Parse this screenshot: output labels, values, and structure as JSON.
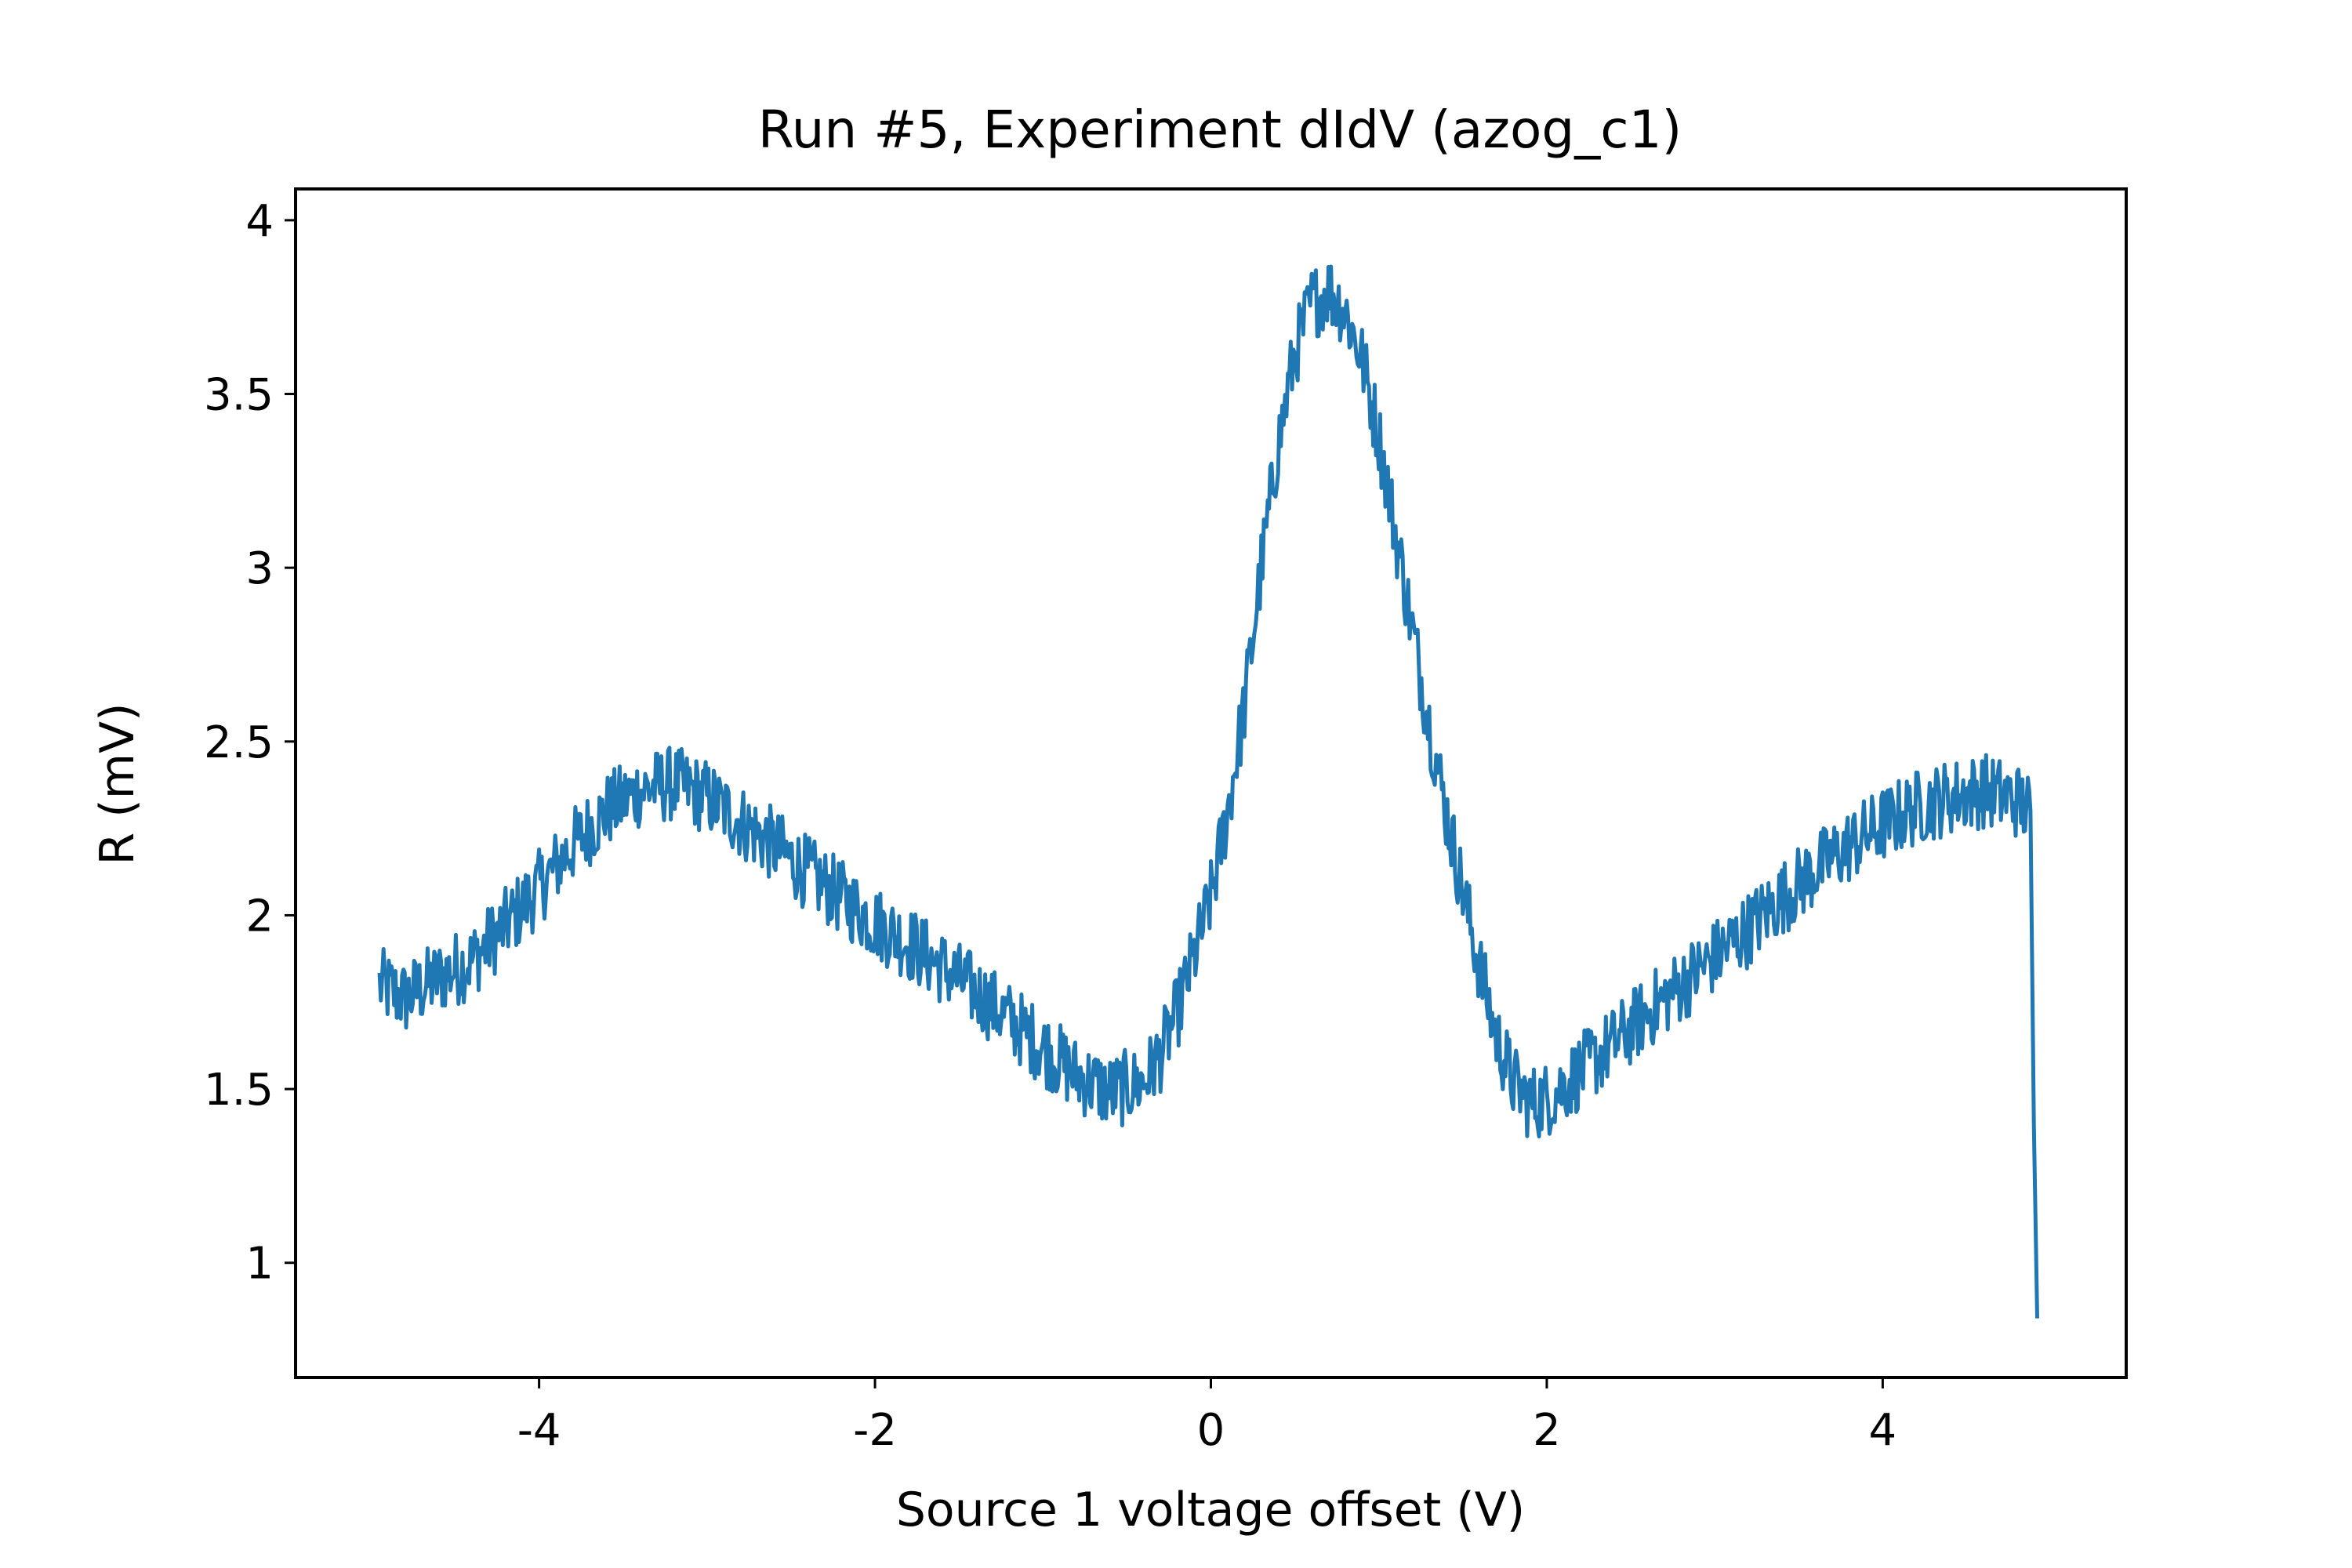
{
  "chart_data": {
    "type": "line",
    "title": "Run #5, Experiment dIdV (azog_c1)",
    "xlabel": "Source 1 voltage offset (V)",
    "ylabel": "R (mV)",
    "xlim": [
      -5.45,
      5.45
    ],
    "ylim": [
      0.67,
      4.09
    ],
    "xticks": [
      -4,
      -2,
      0,
      2,
      4
    ],
    "xtick_labels": [
      "-4",
      "-2",
      "0",
      "2",
      "4"
    ],
    "yticks": [
      1,
      1.5,
      2,
      2.5,
      3,
      3.5,
      4
    ],
    "ytick_labels": [
      "1",
      "1.5",
      "2",
      "2.5",
      "3",
      "3.5",
      "4"
    ],
    "grid": false,
    "legend": "none",
    "series": [
      {
        "color": "#1f77b4",
        "x": [
          -4.95,
          -4.8,
          -4.6,
          -4.4,
          -4.2,
          -4.0,
          -3.8,
          -3.6,
          -3.4,
          -3.2,
          -3.0,
          -2.8,
          -2.6,
          -2.4,
          -2.2,
          -2.0,
          -1.8,
          -1.6,
          -1.4,
          -1.2,
          -1.0,
          -0.8,
          -0.6,
          -0.4,
          -0.3,
          -0.2,
          -0.1,
          0.0,
          0.1,
          0.2,
          0.3,
          0.4,
          0.5,
          0.6,
          0.7,
          0.8,
          0.9,
          1.0,
          1.1,
          1.2,
          1.3,
          1.4,
          1.5,
          1.6,
          1.7,
          1.8,
          1.9,
          2.0,
          2.2,
          2.4,
          2.6,
          2.8,
          3.0,
          3.2,
          3.4,
          3.6,
          3.8,
          4.0,
          4.2,
          4.4,
          4.6,
          4.8,
          4.88,
          4.9,
          4.92
        ],
        "y": [
          1.8,
          1.76,
          1.82,
          1.87,
          1.97,
          2.08,
          2.2,
          2.3,
          2.36,
          2.38,
          2.34,
          2.27,
          2.2,
          2.12,
          2.05,
          1.98,
          1.92,
          1.85,
          1.78,
          1.7,
          1.62,
          1.54,
          1.49,
          1.52,
          1.6,
          1.72,
          1.88,
          2.05,
          2.3,
          2.6,
          3.0,
          3.35,
          3.62,
          3.76,
          3.8,
          3.74,
          3.6,
          3.38,
          3.1,
          2.82,
          2.55,
          2.3,
          2.07,
          1.85,
          1.65,
          1.52,
          1.46,
          1.47,
          1.55,
          1.63,
          1.72,
          1.8,
          1.88,
          1.96,
          2.05,
          2.13,
          2.2,
          2.26,
          2.31,
          2.34,
          2.36,
          2.33,
          2.3,
          1.4,
          0.84
        ]
      }
    ]
  }
}
